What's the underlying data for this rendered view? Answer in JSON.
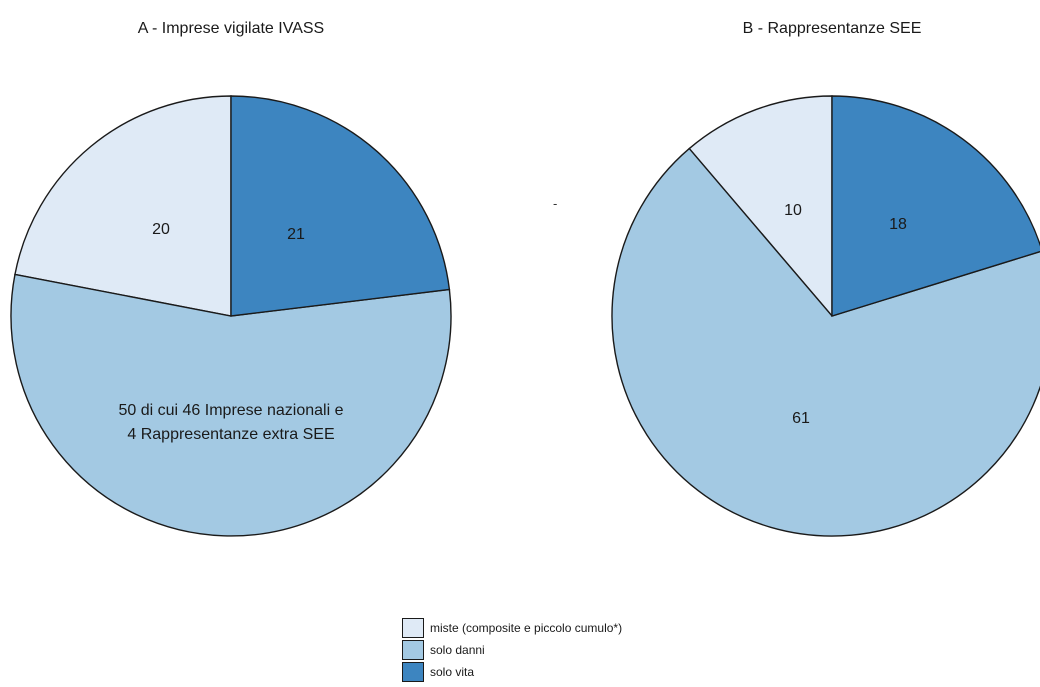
{
  "colors": {
    "miste": "#dfeaf6",
    "danni": "#a3c9e3",
    "vita": "#3d85c0"
  },
  "stray_mark": "-",
  "legend": [
    {
      "key": "miste",
      "label": "miste (composite e piccolo cumulo*)"
    },
    {
      "key": "danni",
      "label": "solo danni"
    },
    {
      "key": "vita",
      "label": "solo vita"
    }
  ],
  "chart_data": [
    {
      "type": "pie",
      "title": "A - Imprese vigilate IVASS",
      "slices": [
        {
          "key": "vita",
          "value": 21,
          "label": "21"
        },
        {
          "key": "danni",
          "value": 50,
          "label": [
            "50 di cui 46 Imprese nazionali e",
            "4 Rappresentanze extra SEE"
          ]
        },
        {
          "key": "miste",
          "value": 20,
          "label": "20"
        }
      ]
    },
    {
      "type": "pie",
      "title": "B - Rappresentanze SEE",
      "slices": [
        {
          "key": "vita",
          "value": 18,
          "label": "18"
        },
        {
          "key": "danni",
          "value": 61,
          "label": "61"
        },
        {
          "key": "miste",
          "value": 10,
          "label": "10"
        }
      ]
    }
  ]
}
